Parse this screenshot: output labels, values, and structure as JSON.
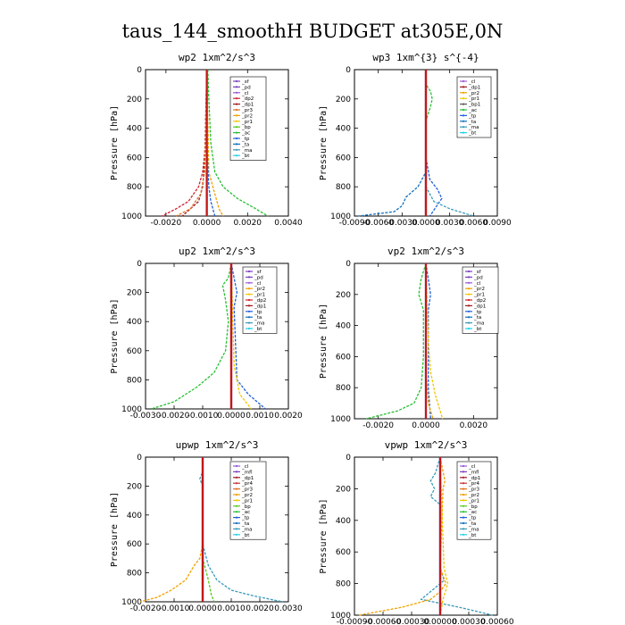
{
  "figure": {
    "title": "taus_144_smoothH  BUDGET at305E,0N"
  },
  "colors": {
    "_sf": "#7b3fbf",
    "_pd": "#7b3fbf",
    "_mfl": "#7b3fbf",
    "_cl": "#9b58d8",
    "_dp2": "#d0202a",
    "_dp1": "#a0191f",
    "_pr4": "#c83030",
    "_pr3": "#e07020",
    "_pr2": "#f0a000",
    "_pr1": "#f2c600",
    "_bp": "#56c81e",
    "_ac": "#27c034",
    "_tp": "#2060d8",
    "_ta": "#1070c0",
    "_ma": "#3a9ab8",
    "_bt": "#20d0e8"
  },
  "chart_data": [
    {
      "type": "line",
      "title": "wp2  1xm^2/s^3",
      "ylabel": "Pressure [hPa]",
      "xlim": [
        -0.003,
        0.004
      ],
      "ylim": [
        1000,
        0
      ],
      "xticks": [
        -0.002,
        0.0,
        0.002,
        0.004
      ],
      "xticklabels": [
        "-0.0020",
        "0.0000",
        "0.0020",
        "0.0040"
      ],
      "yticks": [
        0,
        200,
        400,
        600,
        800,
        1000
      ],
      "yticklabels": [
        "0",
        "200",
        "400",
        "600",
        "800",
        "1000"
      ],
      "legend": [
        "_sf",
        "_pd",
        "_cl",
        "_dp2",
        "_dp1",
        "_pr3",
        "_pr2",
        "_pr1",
        "_bp",
        "_ac",
        "_tp",
        "_ta",
        "_ma",
        "_bt"
      ],
      "series": [
        {
          "name": "_sf",
          "p": [
            0,
            700,
            900,
            1000
          ],
          "v": [
            0,
            0,
            0,
            0
          ]
        },
        {
          "name": "_dp2",
          "p": [
            0,
            500,
            700,
            800,
            900,
            950,
            1000
          ],
          "v": [
            0,
            -5e-05,
            -0.0002,
            -0.0004,
            -0.0009,
            -0.0015,
            -0.0022
          ]
        },
        {
          "name": "_dp1",
          "p": [
            0,
            600,
            800,
            900,
            1000
          ],
          "v": [
            0,
            -0.0001,
            -0.0002,
            -0.0004,
            -0.0012
          ]
        },
        {
          "name": "_pr3",
          "p": [
            0,
            700,
            850,
            950,
            1000
          ],
          "v": [
            0,
            -0.0001,
            -0.0003,
            -0.0008,
            -0.0015
          ]
        },
        {
          "name": "_pr2",
          "p": [
            0,
            700,
            850,
            950,
            1000
          ],
          "v": [
            0,
            0.0001,
            0.0004,
            0.0006,
            0.0008
          ]
        },
        {
          "name": "_ac",
          "p": [
            0,
            200,
            500,
            700,
            800,
            880,
            950,
            1000
          ],
          "v": [
            5e-05,
            0.0001,
            0.0002,
            0.0004,
            0.0008,
            0.0015,
            0.0024,
            0.003
          ]
        },
        {
          "name": "_tp",
          "p": [
            0,
            500,
            800,
            900,
            1000
          ],
          "v": [
            0,
            0,
            0.0001,
            0.0002,
            0.0004
          ]
        },
        {
          "name": "_bt",
          "p": [
            0,
            1000
          ],
          "v": [
            0,
            0
          ]
        }
      ]
    },
    {
      "type": "line",
      "title": "wp3  1xm^{3} s^{-4}",
      "ylabel": "Pressure [hPa]",
      "xlim": [
        -0.009,
        0.009
      ],
      "ylim": [
        1000,
        0
      ],
      "xticks": [
        -0.009,
        -0.006,
        -0.003,
        0.0,
        0.003,
        0.006,
        0.009
      ],
      "xticklabels": [
        "-0.0090",
        "-0.0060",
        "-0.0030",
        "0.0000",
        "0.0030",
        "0.0060",
        "0.0090"
      ],
      "yticks": [
        0,
        200,
        400,
        600,
        800,
        1000
      ],
      "yticklabels": [
        "0",
        "200",
        "400",
        "600",
        "800",
        "1000"
      ],
      "legend": [
        "_cl",
        "_dp1",
        "_pr2",
        "_pr1",
        "_bp1",
        "_ac",
        "_tp",
        "_ta",
        "_ma",
        "_bt"
      ],
      "series": [
        {
          "name": "_cl",
          "p": [
            0,
            1000
          ],
          "v": [
            0,
            0
          ]
        },
        {
          "name": "_ac",
          "p": [
            0,
            100,
            150,
            200,
            250,
            350,
            700,
            1000
          ],
          "v": [
            0,
            0,
            0.0006,
            0.0008,
            0.0006,
            0,
            0,
            0
          ]
        },
        {
          "name": "_tp",
          "p": [
            0,
            600,
            750,
            820,
            880,
            920,
            960,
            1000
          ],
          "v": [
            0,
            0,
            0.0005,
            0.0015,
            0.002,
            0.0015,
            0.001,
            0.0005
          ]
        },
        {
          "name": "_ta",
          "p": [
            0,
            700,
            800,
            870,
            930,
            970,
            1000
          ],
          "v": [
            0,
            0,
            -0.001,
            -0.0025,
            -0.003,
            -0.004,
            -0.0085
          ]
        },
        {
          "name": "_ma",
          "p": [
            0,
            800,
            900,
            950,
            1000
          ],
          "v": [
            0,
            0,
            0.001,
            0.003,
            0.006
          ]
        },
        {
          "name": "_dp1",
          "p": [
            0,
            1000
          ],
          "v": [
            0,
            0
          ]
        }
      ]
    },
    {
      "type": "line",
      "title": "up2  1xm^2/s^3",
      "ylabel": "Pressure [hPa]",
      "xlim": [
        -0.003,
        0.002
      ],
      "ylim": [
        1000,
        0
      ],
      "xticks": [
        -0.003,
        -0.002,
        -0.001,
        0.0,
        0.001,
        0.002
      ],
      "xticklabels": [
        "-0.0030",
        "-0.0020",
        "-0.0010",
        "0.0000",
        "0.0010",
        "0.0020"
      ],
      "yticks": [
        0,
        200,
        400,
        600,
        800,
        1000
      ],
      "yticklabels": [
        "0",
        "200",
        "400",
        "600",
        "800",
        "1000"
      ],
      "legend": [
        "_sf",
        "_pd",
        "_cl",
        "_pr2",
        "_pr1",
        "_dp2",
        "_dp1",
        "_tp",
        "_ta",
        "_ma",
        "_bt"
      ],
      "series": [
        {
          "name": "_cl",
          "p": [
            0,
            1000
          ],
          "v": [
            0,
            0
          ]
        },
        {
          "name": "_ac",
          "p": [
            0,
            100,
            150,
            250,
            400,
            600,
            750,
            850,
            950,
            1000
          ],
          "v": [
            0,
            -0.0001,
            -0.0003,
            -0.0002,
            -0.0001,
            -0.0002,
            -0.0006,
            -0.0012,
            -0.002,
            -0.0028
          ]
        },
        {
          "name": "_tp",
          "p": [
            0,
            100,
            200,
            300,
            800,
            900,
            1000
          ],
          "v": [
            0,
            0.0001,
            0.0002,
            0.0001,
            0.0002,
            0.0006,
            0.0012
          ]
        },
        {
          "name": "_pr1",
          "p": [
            0,
            700,
            900,
            1000
          ],
          "v": [
            0,
            0.0001,
            0.0003,
            0.0007
          ]
        },
        {
          "name": "_dp2",
          "p": [
            0,
            1000
          ],
          "v": [
            0,
            0
          ]
        }
      ]
    },
    {
      "type": "line",
      "title": "vp2  1xm^2/s^3",
      "ylabel": "Pressure [hPa]",
      "xlim": [
        -0.003,
        0.003
      ],
      "ylim": [
        1000,
        0
      ],
      "xticks": [
        -0.002,
        0.0,
        0.002
      ],
      "xticklabels": [
        "-0.0020",
        "0.0000",
        "0.0020"
      ],
      "yticks": [
        0,
        200,
        400,
        600,
        800,
        1000
      ],
      "yticklabels": [
        "0",
        "200",
        "400",
        "600",
        "800",
        "1000"
      ],
      "legend": [
        "_sf",
        "_pd",
        "_cl",
        "_pr2",
        "_pr1",
        "_dp2",
        "_dp1",
        "_tp",
        "_ta",
        "_ma",
        "_bt"
      ],
      "series": [
        {
          "name": "_cl",
          "p": [
            0,
            1000
          ],
          "v": [
            0,
            0
          ]
        },
        {
          "name": "_ac",
          "p": [
            0,
            100,
            200,
            300,
            600,
            800,
            900,
            950,
            1000
          ],
          "v": [
            0,
            -0.0002,
            -0.0003,
            -0.0001,
            -0.0001,
            -0.0002,
            -0.0005,
            -0.0012,
            -0.0025
          ]
        },
        {
          "name": "_tp",
          "p": [
            0,
            100,
            200,
            300,
            800,
            1000
          ],
          "v": [
            0,
            0.0001,
            0.0002,
            0.0001,
            0.0001,
            0.0002
          ]
        },
        {
          "name": "_pr1",
          "p": [
            0,
            500,
            700,
            850,
            950,
            1000
          ],
          "v": [
            0,
            0.0001,
            0.0002,
            0.0004,
            0.0006,
            0.0007
          ]
        },
        {
          "name": "_pr2",
          "p": [
            0,
            700,
            900,
            1000
          ],
          "v": [
            0,
            0,
            0.0001,
            0.0003
          ]
        }
      ]
    },
    {
      "type": "line",
      "title": "upwp  1xm^2/s^3",
      "ylabel": "Pressure [hPa]",
      "xlim": [
        -0.002,
        0.003
      ],
      "ylim": [
        1000,
        0
      ],
      "xticks": [
        -0.002,
        -0.001,
        0.0,
        0.001,
        0.002,
        0.003
      ],
      "xticklabels": [
        "-0.0020",
        "-0.0010",
        "0.0000",
        "0.0010",
        "0.0020",
        "0.0030"
      ],
      "yticks": [
        0,
        200,
        400,
        600,
        800,
        1000
      ],
      "yticklabels": [
        "0",
        "200",
        "400",
        "600",
        "800",
        "1000"
      ],
      "legend": [
        "_cl",
        "_mfl",
        "_dp1",
        "_pr4",
        "_pr3",
        "_pr2",
        "_pr1",
        "_bp",
        "_ac",
        "_tp",
        "_ta",
        "_ma",
        "_bt"
      ],
      "series": [
        {
          "name": "_cl",
          "p": [
            0,
            1000
          ],
          "v": [
            0,
            0
          ]
        },
        {
          "name": "_ma",
          "p": [
            0,
            100,
            150,
            200,
            600,
            750,
            850,
            920,
            960,
            1000
          ],
          "v": [
            0,
            0,
            -0.0001,
            0,
            0,
            0.0002,
            0.0005,
            0.001,
            0.0018,
            0.0028
          ]
        },
        {
          "name": "_pr2",
          "p": [
            0,
            600,
            700,
            750,
            850,
            920,
            970,
            1000
          ],
          "v": [
            0,
            0,
            -0.0001,
            -0.0003,
            -0.0006,
            -0.0011,
            -0.0016,
            -0.0022
          ]
        },
        {
          "name": "_bp",
          "p": [
            0,
            700,
            850,
            950,
            1000
          ],
          "v": [
            0,
            0,
            0.0002,
            0.0003,
            0.0004
          ]
        },
        {
          "name": "_mfl",
          "p": [
            0,
            1000
          ],
          "v": [
            0,
            0
          ]
        }
      ]
    },
    {
      "type": "line",
      "title": "vpwp  1xm^2/s^3",
      "ylabel": "Pressure [hPa]",
      "xlim": [
        -0.0009,
        0.0006
      ],
      "ylim": [
        1000,
        0
      ],
      "xticks": [
        -0.0009,
        -0.0006,
        -0.0003,
        0.0,
        0.0003,
        0.0006
      ],
      "xticklabels": [
        "-0.00090",
        "-0.00060",
        "-0.00030",
        "0.00000",
        "0.00030",
        "0.00060"
      ],
      "yticks": [
        0,
        200,
        400,
        600,
        800,
        1000
      ],
      "yticklabels": [
        "0",
        "200",
        "400",
        "600",
        "800",
        "1000"
      ],
      "legend": [
        "_cl",
        "_mfl",
        "_dp1",
        "_pr4",
        "_pr3",
        "_pr2",
        "_pr1",
        "_bp",
        "_ac",
        "_tp",
        "_ta",
        "_ma",
        "_bt"
      ],
      "series": [
        {
          "name": "_cl",
          "p": [
            0,
            1000
          ],
          "v": [
            0,
            0
          ]
        },
        {
          "name": "_ma",
          "p": [
            0,
            100,
            150,
            200,
            250,
            300,
            700,
            780,
            850,
            900,
            950,
            1000
          ],
          "v": [
            0,
            -5e-05,
            -0.0001,
            -6e-05,
            -0.0001,
            0,
            0,
            4e-05,
            -0.0001,
            -0.0002,
            0.0002,
            0.00055
          ]
        },
        {
          "name": "_pr2",
          "p": [
            0,
            150,
            200,
            700,
            800,
            850,
            900,
            950,
            1000
          ],
          "v": [
            0,
            5e-05,
            3e-05,
            0,
            6e-05,
            0,
            -0.0001,
            -0.0004,
            -0.00085
          ]
        },
        {
          "name": "_pr1",
          "p": [
            0,
            700,
            800,
            900,
            1000
          ],
          "v": [
            0,
            4e-05,
            8e-05,
            3e-05,
            0
          ]
        },
        {
          "name": "_mfl",
          "p": [
            0,
            1000
          ],
          "v": [
            0,
            0
          ]
        }
      ]
    }
  ]
}
